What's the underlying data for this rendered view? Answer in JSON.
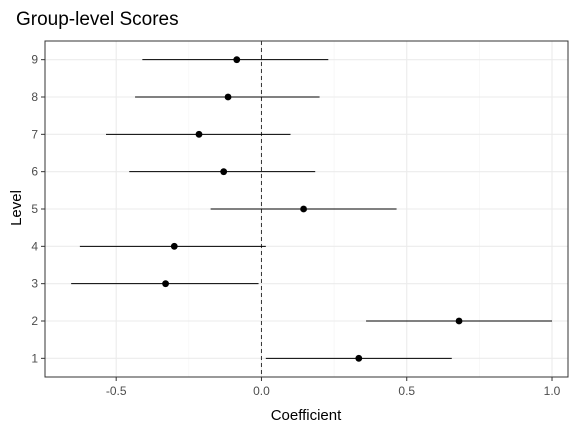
{
  "chart_data": {
    "type": "scatter",
    "subtype": "coefficient-interval",
    "title": "Group-level Scores",
    "xlabel": "Coefficient",
    "ylabel": "Level",
    "xlim": [
      -0.745,
      1.055
    ],
    "ylim": [
      0.5,
      9.5
    ],
    "x_ticks": [
      -0.5,
      0,
      0.5,
      1
    ],
    "x_tick_labels": [
      "-0.5",
      "0.0",
      "0.5",
      "1.0"
    ],
    "categories": [
      "1",
      "2",
      "3",
      "4",
      "5",
      "6",
      "7",
      "8",
      "9"
    ],
    "points": [
      {
        "level": "1",
        "estimate": 0.335,
        "lower": 0.015,
        "upper": 0.655
      },
      {
        "level": "2",
        "estimate": 0.68,
        "lower": 0.36,
        "upper": 1.0
      },
      {
        "level": "3",
        "estimate": -0.33,
        "lower": -0.655,
        "upper": -0.01
      },
      {
        "level": "4",
        "estimate": -0.3,
        "lower": -0.625,
        "upper": 0.015
      },
      {
        "level": "5",
        "estimate": 0.145,
        "lower": -0.175,
        "upper": 0.465
      },
      {
        "level": "6",
        "estimate": -0.13,
        "lower": -0.455,
        "upper": 0.185
      },
      {
        "level": "7",
        "estimate": -0.215,
        "lower": -0.535,
        "upper": 0.1
      },
      {
        "level": "8",
        "estimate": -0.115,
        "lower": -0.435,
        "upper": 0.2
      },
      {
        "level": "9",
        "estimate": -0.085,
        "lower": -0.41,
        "upper": 0.23
      }
    ],
    "reference_line": {
      "x": 0,
      "style": "dashed"
    },
    "grid": true
  },
  "colors": {
    "background": "#ffffff",
    "panel_border": "#333333",
    "grid_major": "#ebebeb",
    "grid_minor": "#f5f5f5",
    "point": "#000000",
    "interval": "#000000",
    "reference_line": "#333333",
    "tick_label": "#4d4d4d"
  }
}
